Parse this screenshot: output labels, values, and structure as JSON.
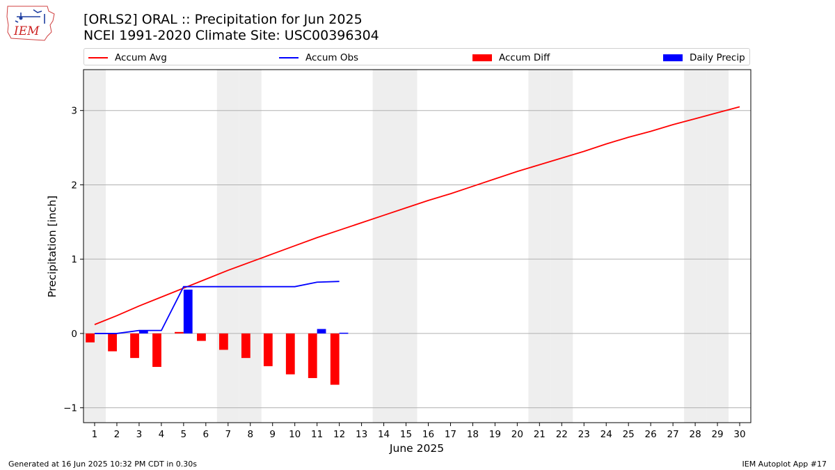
{
  "header": {
    "title_line1": "[ORLS2] ORAL :: Precipitation for Jun 2025",
    "title_line2": "NCEI 1991-2020 Climate Site: USC00396304"
  },
  "logo": {
    "text": "IEM"
  },
  "footer": {
    "generated": "Generated at 16 Jun 2025 10:32 PM CDT in 0.30s",
    "app": "IEM Autoplot App #17"
  },
  "legend": {
    "accum_avg": "Accum Avg",
    "accum_obs": "Accum Obs",
    "accum_diff": "Accum Diff",
    "daily_precip": "Daily Precip"
  },
  "colors": {
    "avg": "#ff0000",
    "obs": "#0000ff",
    "diff": "#ff0000",
    "daily": "#0000ff",
    "weekend_band": "#eeeeee",
    "grid": "#b0b0b0"
  },
  "chart_data": {
    "type": "line",
    "xlabel": "June 2025",
    "ylabel": "Precipitation [inch]",
    "xlim": [
      0.5,
      30.5
    ],
    "ylim": [
      -1.2,
      3.55
    ],
    "x_ticks": [
      1,
      2,
      3,
      4,
      5,
      6,
      7,
      8,
      9,
      10,
      11,
      12,
      13,
      14,
      15,
      16,
      17,
      18,
      19,
      20,
      21,
      22,
      23,
      24,
      25,
      26,
      27,
      28,
      29,
      30
    ],
    "y_ticks": [
      -1,
      0,
      1,
      2,
      3
    ],
    "grid": "horizontal",
    "legend_position": "top",
    "weekend_days": [
      1,
      7,
      8,
      14,
      15,
      21,
      22,
      28,
      29
    ],
    "series": [
      {
        "name": "Accum Avg",
        "kind": "line",
        "x": [
          1,
          2,
          3,
          4,
          5,
          6,
          7,
          8,
          9,
          10,
          11,
          12,
          13,
          14,
          15,
          16,
          17,
          18,
          19,
          20,
          21,
          22,
          23,
          24,
          25,
          26,
          27,
          28,
          29,
          30
        ],
        "values": [
          0.12,
          0.24,
          0.37,
          0.49,
          0.61,
          0.73,
          0.85,
          0.96,
          1.07,
          1.18,
          1.29,
          1.39,
          1.49,
          1.59,
          1.69,
          1.79,
          1.88,
          1.98,
          2.08,
          2.18,
          2.27,
          2.36,
          2.45,
          2.55,
          2.64,
          2.72,
          2.81,
          2.89,
          2.97,
          3.05
        ]
      },
      {
        "name": "Accum Obs",
        "kind": "line",
        "x": [
          1,
          2,
          3,
          4,
          5,
          6,
          7,
          8,
          9,
          10,
          11,
          12
        ],
        "values": [
          0.0,
          0.0,
          0.04,
          0.04,
          0.63,
          0.63,
          0.63,
          0.63,
          0.63,
          0.63,
          0.69,
          0.7
        ]
      },
      {
        "name": "Accum Diff",
        "kind": "bar",
        "x": [
          1,
          2,
          3,
          4,
          5,
          6,
          7,
          8,
          9,
          10,
          11,
          12
        ],
        "values": [
          -0.12,
          -0.24,
          -0.33,
          -0.45,
          0.02,
          -0.1,
          -0.22,
          -0.33,
          -0.44,
          -0.55,
          -0.6,
          -0.69
        ]
      },
      {
        "name": "Daily Precip",
        "kind": "bar",
        "x": [
          1,
          2,
          3,
          4,
          5,
          6,
          7,
          8,
          9,
          10,
          11,
          12
        ],
        "values": [
          0.0,
          0.0,
          0.04,
          0.0,
          0.59,
          0.0,
          0.0,
          0.0,
          0.0,
          0.0,
          0.06,
          0.01
        ]
      }
    ]
  }
}
